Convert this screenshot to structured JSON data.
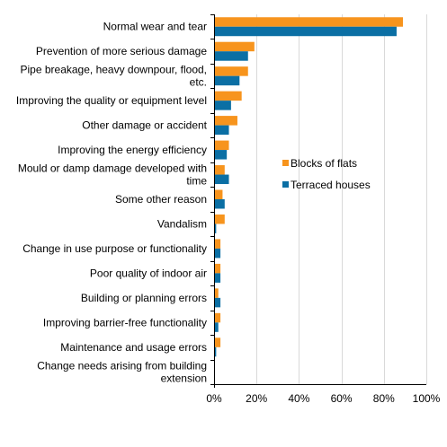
{
  "chart_data": {
    "type": "bar",
    "orientation": "horizontal",
    "categories": [
      "Normal wear and tear",
      "Prevention of more serious damage",
      "Pipe breakage, heavy downpour, flood, etc.",
      "Improving the quality or equipment level",
      "Other damage or accident",
      "Improving the energy efficiency",
      "Mould or damp damage developed with time",
      "Some other reason",
      "Vandalism",
      "Change in use purpose or functionality",
      "Poor quality of indoor air",
      "Building or planning errors",
      "Improving barrier-free functionality",
      "Maintenance and usage errors",
      "Change needs arising from building extension"
    ],
    "series": [
      {
        "name": "Blocks of flats",
        "color": "#F7941D",
        "values": [
          89,
          19,
          16,
          13,
          11,
          7,
          5,
          4,
          5,
          3,
          3,
          2,
          3,
          3,
          0
        ]
      },
      {
        "name": "Terraced houses",
        "color": "#0B6FA4",
        "values": [
          86,
          16,
          12,
          8,
          7,
          6,
          7,
          5,
          1,
          3,
          3,
          3,
          2,
          1,
          0
        ]
      }
    ],
    "xlim": [
      0,
      100
    ],
    "x_ticks": [
      "0%",
      "20%",
      "40%",
      "60%",
      "80%",
      "100%"
    ],
    "x_tick_values": [
      0,
      20,
      40,
      60,
      80,
      100
    ],
    "grid": "vertical",
    "legend_position": "right"
  }
}
